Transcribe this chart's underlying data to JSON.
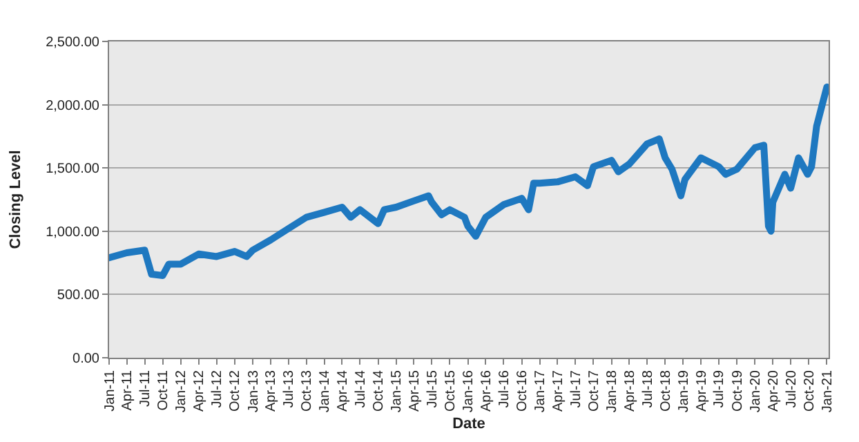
{
  "chart_data": {
    "type": "line",
    "xlabel": "Date",
    "ylabel": "Closing Level",
    "x": [
      "2011-01-01",
      "2011-04-01",
      "2011-07-01",
      "2011-08-05",
      "2011-10-01",
      "2011-11-01",
      "2012-01-01",
      "2012-04-01",
      "2012-07-01",
      "2012-10-01",
      "2012-12-01",
      "2013-01-01",
      "2013-04-01",
      "2013-07-01",
      "2013-10-01",
      "2014-01-01",
      "2014-04-01",
      "2014-05-15",
      "2014-07-01",
      "2014-10-01",
      "2014-11-01",
      "2015-01-01",
      "2015-04-01",
      "2015-06-15",
      "2015-07-01",
      "2015-08-20",
      "2015-10-01",
      "2015-12-15",
      "2016-01-01",
      "2016-02-10",
      "2016-04-01",
      "2016-07-01",
      "2016-10-01",
      "2016-11-05",
      "2016-12-01",
      "2017-01-01",
      "2017-04-01",
      "2017-07-01",
      "2017-09-01",
      "2017-10-01",
      "2018-01-01",
      "2018-02-05",
      "2018-04-01",
      "2018-07-01",
      "2018-09-01",
      "2018-10-01",
      "2018-11-05",
      "2018-12-20",
      "2019-01-10",
      "2019-04-01",
      "2019-07-01",
      "2019-08-05",
      "2019-10-01",
      "2020-01-01",
      "2020-02-15",
      "2020-03-10",
      "2020-03-23",
      "2020-04-01",
      "2020-06-01",
      "2020-07-01",
      "2020-08-10",
      "2020-09-25",
      "2020-10-15",
      "2020-11-10",
      "2020-12-05",
      "2021-01-01"
    ],
    "series": [
      {
        "color": "#1e78c0",
        "values": [
          790,
          830,
          850,
          660,
          650,
          740,
          740,
          820,
          800,
          840,
          800,
          850,
          930,
          1020,
          1110,
          1150,
          1190,
          1110,
          1170,
          1060,
          1170,
          1190,
          1240,
          1280,
          1230,
          1130,
          1170,
          1110,
          1040,
          960,
          1110,
          1210,
          1260,
          1170,
          1380,
          1380,
          1390,
          1430,
          1360,
          1510,
          1560,
          1470,
          1530,
          1690,
          1730,
          1580,
          1490,
          1280,
          1410,
          1580,
          1510,
          1450,
          1490,
          1660,
          1680,
          1040,
          1000,
          1230,
          1450,
          1340,
          1580,
          1450,
          1510,
          1830,
          1980,
          2140
        ]
      }
    ],
    "xlim": [
      "2011-01-01",
      "2021-01-10"
    ],
    "xticks": [
      {
        "value": "2011-01-01",
        "label": "Jan-11"
      },
      {
        "value": "2011-04-01",
        "label": "Apr-11"
      },
      {
        "value": "2011-07-01",
        "label": "Jul-11"
      },
      {
        "value": "2011-10-01",
        "label": "Oct-11"
      },
      {
        "value": "2012-01-01",
        "label": "Jan-12"
      },
      {
        "value": "2012-04-01",
        "label": "Apr-12"
      },
      {
        "value": "2012-07-01",
        "label": "Jul-12"
      },
      {
        "value": "2012-10-01",
        "label": "Oct-12"
      },
      {
        "value": "2013-01-01",
        "label": "Jan-13"
      },
      {
        "value": "2013-04-01",
        "label": "Apr-13"
      },
      {
        "value": "2013-07-01",
        "label": "Jul-13"
      },
      {
        "value": "2013-10-01",
        "label": "Oct-13"
      },
      {
        "value": "2014-01-01",
        "label": "Jan-14"
      },
      {
        "value": "2014-04-01",
        "label": "Apr-14"
      },
      {
        "value": "2014-07-01",
        "label": "Jul-14"
      },
      {
        "value": "2014-10-01",
        "label": "Oct-14"
      },
      {
        "value": "2015-01-01",
        "label": "Jan-15"
      },
      {
        "value": "2015-04-01",
        "label": "Apr-15"
      },
      {
        "value": "2015-07-01",
        "label": "Jul-15"
      },
      {
        "value": "2015-10-01",
        "label": "Oct-15"
      },
      {
        "value": "2016-01-01",
        "label": "Jan-16"
      },
      {
        "value": "2016-04-01",
        "label": "Apr-16"
      },
      {
        "value": "2016-07-01",
        "label": "Jul-16"
      },
      {
        "value": "2016-10-01",
        "label": "Oct-16"
      },
      {
        "value": "2017-01-01",
        "label": "Jan-17"
      },
      {
        "value": "2017-04-01",
        "label": "Apr-17"
      },
      {
        "value": "2017-07-01",
        "label": "Jul-17"
      },
      {
        "value": "2017-10-01",
        "label": "Oct-17"
      },
      {
        "value": "2018-01-01",
        "label": "Jan-18"
      },
      {
        "value": "2018-04-01",
        "label": "Apr-18"
      },
      {
        "value": "2018-07-01",
        "label": "Jul-18"
      },
      {
        "value": "2018-10-01",
        "label": "Oct-18"
      },
      {
        "value": "2019-01-01",
        "label": "Jan-19"
      },
      {
        "value": "2019-04-01",
        "label": "Apr-19"
      },
      {
        "value": "2019-07-01",
        "label": "Jul-19"
      },
      {
        "value": "2019-10-01",
        "label": "Oct-19"
      },
      {
        "value": "2020-01-01",
        "label": "Jan-20"
      },
      {
        "value": "2020-04-01",
        "label": "Apr-20"
      },
      {
        "value": "2020-07-01",
        "label": "Jul-20"
      },
      {
        "value": "2020-10-01",
        "label": "Oct-20"
      },
      {
        "value": "2021-01-01",
        "label": "Jan-21"
      }
    ],
    "ylim": [
      0,
      2500
    ],
    "yticks": [
      {
        "value": 0,
        "label": "0.00"
      },
      {
        "value": 500,
        "label": "500.00"
      },
      {
        "value": 1000,
        "label": "1,000.00"
      },
      {
        "value": 1500,
        "label": "1,500.00"
      },
      {
        "value": 2000,
        "label": "2,000.00"
      },
      {
        "value": 2500,
        "label": "2,500.00"
      }
    ],
    "grid": "y",
    "marker": "none",
    "line_style": "solid"
  }
}
